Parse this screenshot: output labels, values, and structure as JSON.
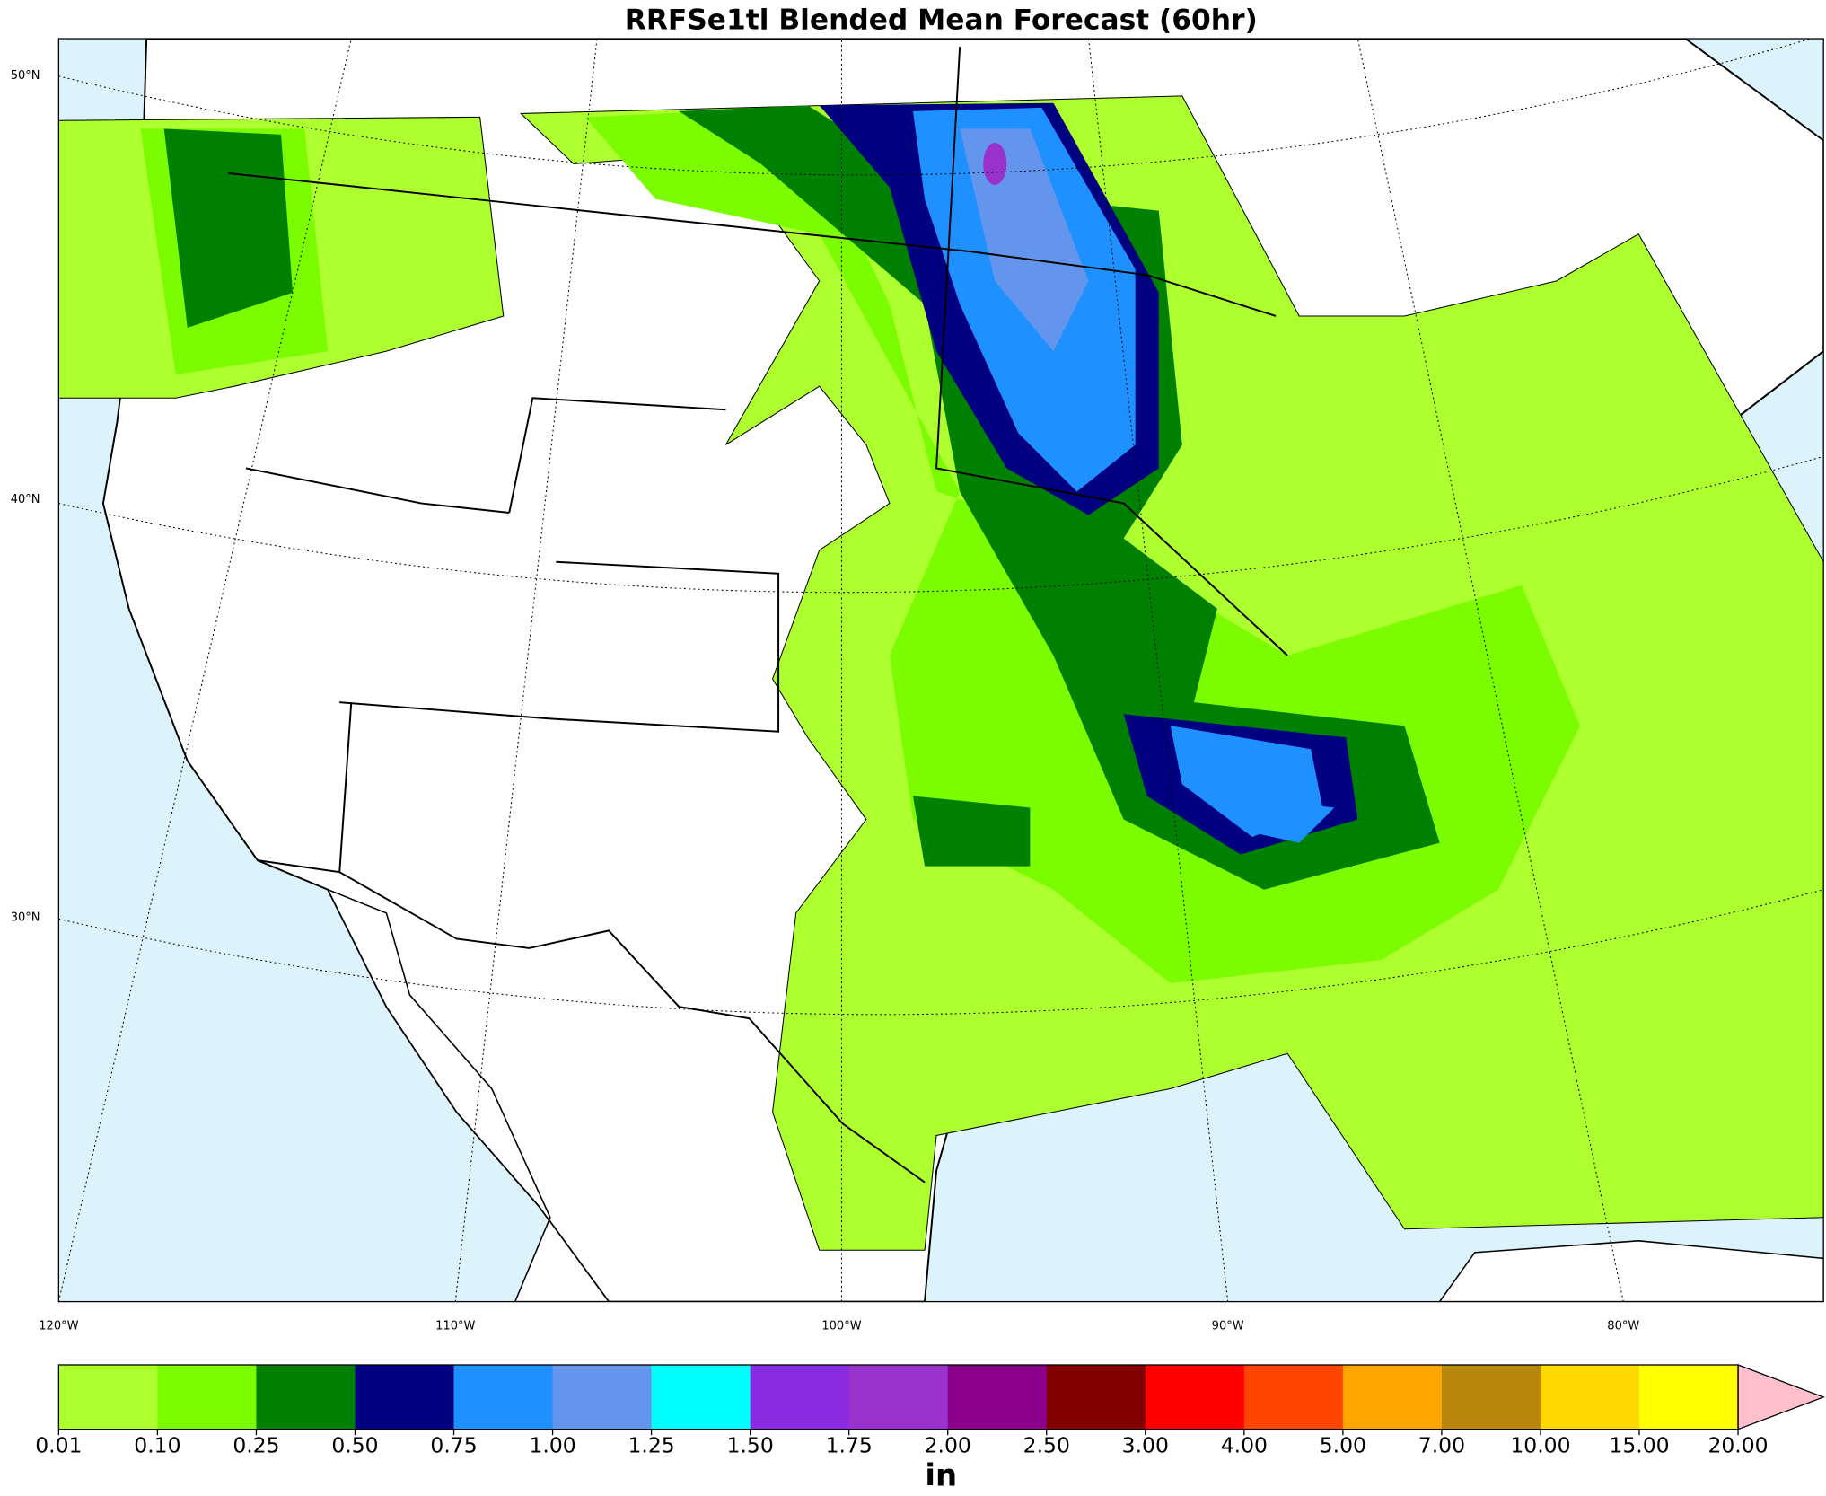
{
  "title": "RRFSe1tl Blended Mean Forecast (60hr)",
  "map": {
    "lat_labels": [
      "50°N",
      "40°N",
      "30°N"
    ],
    "lon_labels": [
      "120°W",
      "110°W",
      "100°W",
      "90°W",
      "80°W"
    ]
  },
  "colorbar": {
    "label": "in",
    "levels": [
      0.01,
      {
        "value": 0.1,
        "label": "0.10"
      },
      0.25,
      {
        "value": 0.5,
        "label": "0.50"
      },
      0.75,
      {
        "value": 1,
        "label": "1.00"
      },
      1.25,
      {
        "value": 1.5,
        "label": "1.50"
      },
      1.75,
      {
        "value": 2,
        "label": "2.00"
      },
      {
        "value": 2.5,
        "label": "2.50"
      },
      {
        "value": 3,
        "label": "3.00"
      },
      {
        "value": 4,
        "label": "4.00"
      },
      {
        "value": 5,
        "label": "5.00"
      },
      {
        "value": 7,
        "label": "7.00"
      },
      {
        "value": 10,
        "label": "10.00"
      },
      {
        "value": 15,
        "label": "15.00"
      },
      {
        "value": 20,
        "label": "20.00"
      }
    ],
    "colors": [
      "#adff2f",
      "#7cfc00",
      "#008000",
      "#000080",
      "#1e90ff",
      "#6495ed",
      "#00ffff",
      "#8a2be2",
      "#9932cc",
      "#8b008b",
      "#800000",
      "#ff0000",
      "#ff4500",
      "#ffa500",
      "#b8860b",
      "#ffd700",
      "#ffff00"
    ],
    "extend_color": "#ffc0cb"
  }
}
